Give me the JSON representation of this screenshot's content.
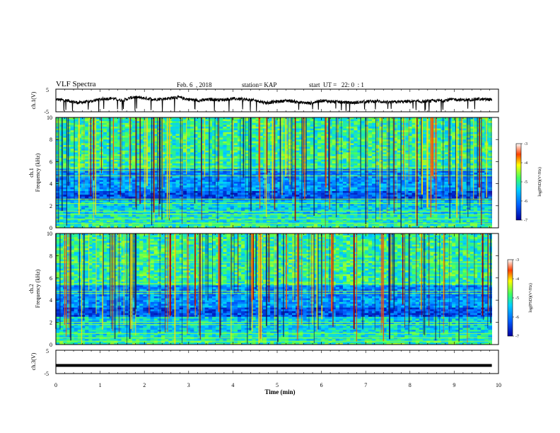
{
  "header": {
    "title": "VLF Spectra",
    "date": "Feb. 6  , 2018",
    "station": "station= KAP",
    "start": "start  UT =   22: 0  : 1"
  },
  "chart_data": [
    {
      "type": "line",
      "panel": "ch1-waveform",
      "ylabel": "ch.1(V)",
      "ylim": [
        -5,
        5
      ],
      "y_ticks": [
        "5",
        "-5"
      ],
      "xlim": [
        0,
        10
      ],
      "x": [
        0,
        0.25,
        0.5,
        0.75,
        1,
        1.25,
        1.5,
        1.75,
        2,
        2.25,
        2.5,
        2.75,
        3,
        3.25,
        3.5,
        3.75,
        4,
        4.25,
        4.5,
        4.75,
        5,
        5.25,
        5.5,
        5.75,
        6,
        6.25,
        6.5,
        6.75,
        7,
        7.25,
        7.5,
        7.75,
        8,
        8.25,
        8.5,
        8.75,
        9,
        9.25,
        9.5,
        9.75
      ],
      "y": [
        0.5,
        0.0,
        -1.0,
        -0.5,
        0.5,
        1.0,
        0.0,
        1.5,
        1.0,
        0.5,
        0.8,
        1.5,
        0.5,
        0.0,
        0.5,
        0.3,
        0.8,
        0.5,
        0.0,
        -1.0,
        -0.5,
        0.0,
        -0.8,
        -1.2,
        0.0,
        -0.5,
        -0.8,
        -1.0,
        -0.5,
        -0.3,
        -0.8,
        -0.6,
        -0.4,
        -0.5,
        -0.2,
        0.0,
        0.5,
        0.2,
        0.6,
        0.4
      ],
      "line_color": "#000000"
    },
    {
      "type": "heatmap",
      "panel": "ch1-spectrogram",
      "ylabel_top": "ch.1",
      "ylabel": "Frequency (kHz)",
      "ylim": [
        0,
        10
      ],
      "y_ticks": [
        "0",
        "2",
        "4",
        "6",
        "8",
        "10"
      ],
      "xlim": [
        0,
        10
      ],
      "colorbar": {
        "label": "log(PSD)(V²/Hz)",
        "range": [
          -7,
          -3
        ],
        "ticks": [
          "-3",
          "-4",
          "-5",
          "-6",
          "-7"
        ]
      }
    },
    {
      "type": "heatmap",
      "panel": "ch2-spectrogram",
      "ylabel_top": "ch.2",
      "ylabel": "Frequency (kHz)",
      "ylim": [
        0,
        10
      ],
      "y_ticks": [
        "0",
        "2",
        "4",
        "6",
        "8",
        "10"
      ],
      "xlim": [
        0,
        10
      ],
      "colorbar": {
        "label": "log(PSD)(V²/Hz)",
        "range": [
          -7,
          -3
        ],
        "ticks": [
          "-3",
          "-4",
          "-5",
          "-6",
          "-7"
        ]
      }
    },
    {
      "type": "line",
      "panel": "ch3-waveform",
      "ylabel": "ch.3(V)",
      "ylim": [
        -5,
        5
      ],
      "y_ticks": [
        "5",
        "-5"
      ],
      "xlim": [
        0,
        10
      ],
      "x": [
        0,
        9.85
      ],
      "y": [
        -1.5,
        -1.5
      ],
      "line_color": "#000000",
      "xlabel": "Time (min)",
      "x_ticks": [
        "0",
        "1",
        "2",
        "3",
        "4",
        "5",
        "6",
        "7",
        "8",
        "9",
        "10"
      ]
    }
  ]
}
